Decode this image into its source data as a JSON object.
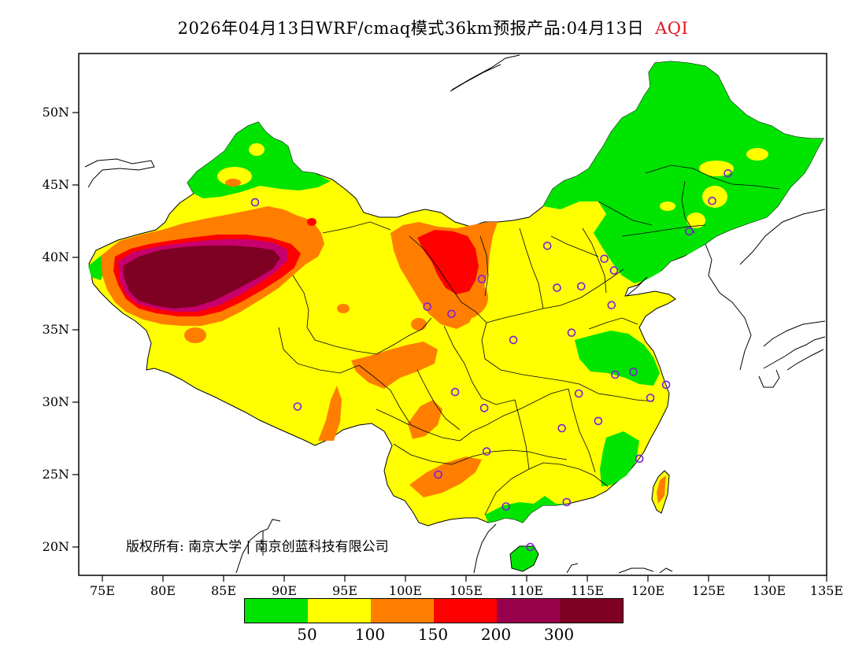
{
  "title": {
    "main": "2026年04月13日WRF/cmaq模式36km预报产品:04月13日",
    "product": "AQI"
  },
  "colors": {
    "good": "#00e400",
    "moderate": "#ffff00",
    "usg": "#ff7e00",
    "unhealthy": "#ff0000",
    "very_unhealthy": "#99004c",
    "hazardous": "#7e0023",
    "station": "#7a1fd6",
    "ocean": "#ffffff"
  },
  "axes": {
    "latitude_labels": [
      "50N",
      "45N",
      "40N",
      "35N",
      "30N",
      "25N",
      "20N"
    ],
    "longitude_labels": [
      "75E",
      "80E",
      "85E",
      "90E",
      "95E",
      "100E",
      "105E",
      "110E",
      "115E",
      "120E",
      "125E",
      "130E",
      "135E"
    ]
  },
  "copyright": "版权所有: 南京大学 | 南京创蓝科技有限公司",
  "legend": {
    "colors": [
      "#00e400",
      "#ffff00",
      "#ff7e00",
      "#ff0000",
      "#99004c",
      "#7e0023"
    ],
    "values": [
      "50",
      "100",
      "150",
      "200",
      "300"
    ]
  },
  "stations": [
    [
      87.6,
      43.8
    ],
    [
      91.1,
      29.7
    ],
    [
      101.8,
      36.6
    ],
    [
      103.8,
      36.1
    ],
    [
      106.3,
      38.5
    ],
    [
      111.7,
      40.8
    ],
    [
      112.5,
      37.9
    ],
    [
      114.5,
      38.0
    ],
    [
      116.4,
      39.9
    ],
    [
      117.2,
      39.1
    ],
    [
      123.4,
      41.8
    ],
    [
      125.3,
      43.9
    ],
    [
      126.6,
      45.8
    ],
    [
      117.0,
      36.7
    ],
    [
      113.7,
      34.8
    ],
    [
      108.9,
      34.3
    ],
    [
      104.1,
      30.7
    ],
    [
      106.5,
      29.6
    ],
    [
      114.3,
      30.6
    ],
    [
      112.9,
      28.2
    ],
    [
      115.9,
      28.7
    ],
    [
      117.3,
      31.9
    ],
    [
      118.8,
      32.1
    ],
    [
      120.2,
      30.3
    ],
    [
      121.5,
      31.2
    ],
    [
      119.3,
      26.1
    ],
    [
      113.3,
      23.1
    ],
    [
      108.3,
      22.8
    ],
    [
      110.3,
      20.0
    ],
    [
      106.7,
      26.6
    ],
    [
      102.7,
      25.0
    ]
  ]
}
